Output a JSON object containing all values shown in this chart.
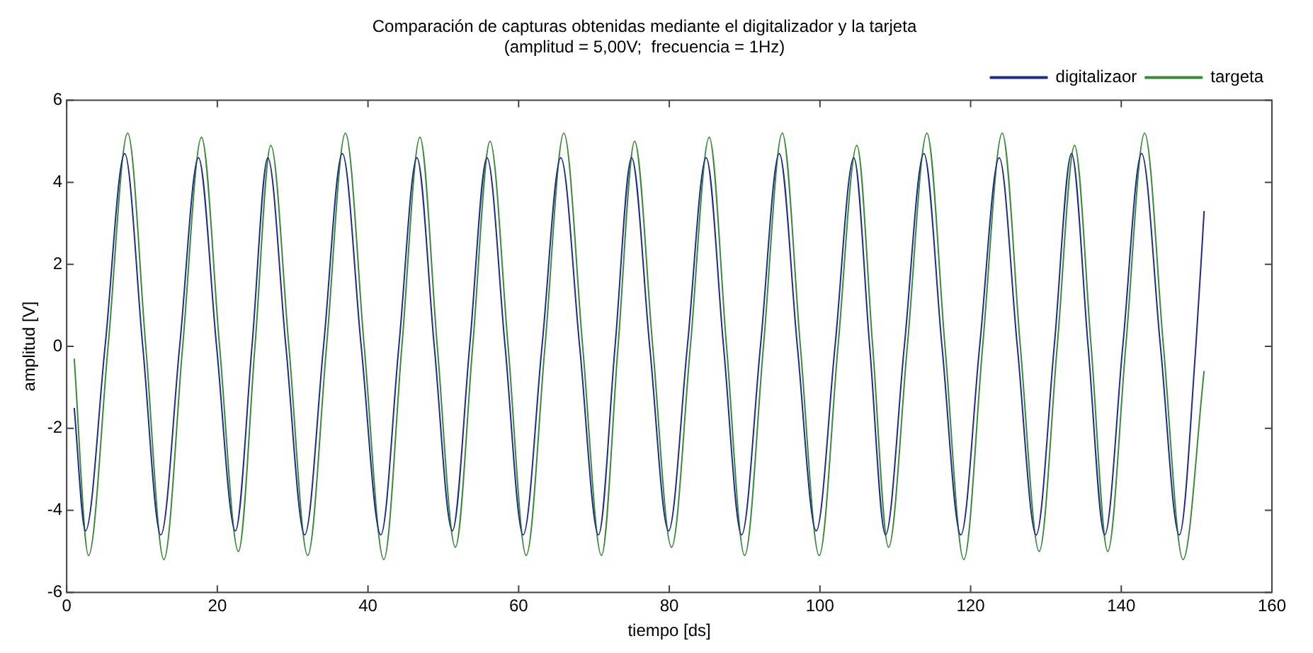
{
  "chart_data": {
    "type": "line",
    "title": "Comparación de capturas obtenidas mediante el digitalizador y la tarjeta",
    "subtitle": "(amplitud = 5,00V;  frecuencia = 1Hz)",
    "xlabel": "tiempo [ds]",
    "ylabel": "amplitud [V]",
    "series": [
      {
        "name": "digitalizaor",
        "color": "#1f2a8c",
        "x": [
          1,
          2.5,
          5.1,
          7.7,
          10.1,
          12.5,
          15,
          17.5,
          19.9,
          22.4,
          24.6,
          26.7,
          29.1,
          31.6,
          34.1,
          36.6,
          39.1,
          41.7,
          44.1,
          46.5,
          48.8,
          51.2,
          53.5,
          55.8,
          58.2,
          60.6,
          63.1,
          65.6,
          68.1,
          70.6,
          72.8,
          75,
          77.4,
          79.9,
          82.4,
          84.9,
          87.2,
          89.6,
          92.1,
          94.6,
          97,
          99.5,
          102,
          104.5,
          106.6,
          108.7,
          111.2,
          113.8,
          116.2,
          118.7,
          121.2,
          123.8,
          126.2,
          128.7,
          131.1,
          133.4,
          135.6,
          137.8,
          140.2,
          142.7,
          145.2,
          147.7,
          149.9,
          151
        ],
        "values": [
          -1.5,
          -4.5,
          0,
          4.7,
          0,
          -4.6,
          0,
          4.6,
          0,
          -4.5,
          0,
          4.6,
          0,
          -4.6,
          0,
          4.7,
          0,
          -4.6,
          0,
          4.6,
          0,
          -4.5,
          0,
          4.6,
          0,
          -4.6,
          0,
          4.6,
          0,
          -4.6,
          0,
          4.6,
          0,
          -4.5,
          0,
          4.6,
          0,
          -4.6,
          0,
          4.7,
          0,
          -4.5,
          0,
          4.6,
          0,
          -4.6,
          0,
          4.7,
          0,
          -4.6,
          0,
          4.6,
          0,
          -4.6,
          0,
          4.7,
          0,
          -4.6,
          0,
          4.7,
          0,
          -4.6,
          0,
          3.3
        ]
      },
      {
        "name": "targeta",
        "color": "#3a8a3a",
        "x": [
          1,
          2.9,
          5.5,
          8.1,
          10.5,
          12.9,
          15.4,
          17.9,
          20.3,
          22.8,
          25,
          27.1,
          29.5,
          32,
          34.5,
          37,
          39.5,
          42.1,
          44.5,
          46.9,
          49.2,
          51.6,
          53.9,
          56.2,
          58.6,
          61,
          63.5,
          66,
          68.5,
          71,
          73.2,
          75.4,
          77.8,
          80.3,
          82.8,
          85.3,
          87.6,
          90,
          92.5,
          95,
          97.4,
          99.9,
          102.4,
          104.9,
          107,
          109.1,
          111.6,
          114.2,
          116.6,
          119.1,
          121.6,
          124.2,
          126.6,
          129.1,
          131.5,
          133.8,
          136,
          138.2,
          140.6,
          143.1,
          145.6,
          148.2,
          151
        ],
        "values": [
          -0.3,
          -5.1,
          0,
          5.2,
          0,
          -5.2,
          0,
          5.1,
          0,
          -5,
          0,
          4.9,
          0,
          -5.1,
          0,
          5.2,
          0,
          -5.2,
          0,
          5.1,
          0,
          -4.9,
          0,
          5,
          0,
          -5.1,
          0,
          5.2,
          0,
          -5.1,
          0,
          5,
          0,
          -4.9,
          0,
          5.1,
          0,
          -5.1,
          0,
          5.2,
          0,
          -5.1,
          0,
          4.9,
          0,
          -4.9,
          0,
          5.2,
          0,
          -5.2,
          0,
          5.2,
          0,
          -5,
          0,
          4.9,
          0,
          -5,
          0,
          5.2,
          0,
          -5.2,
          -0.6
        ]
      }
    ],
    "xlim": [
      0,
      160
    ],
    "xticks": [
      0,
      20,
      40,
      60,
      80,
      100,
      120,
      140,
      160
    ],
    "ylim": [
      -6,
      6
    ],
    "yticks": [
      -6,
      -4,
      -2,
      0,
      2,
      4,
      6
    ],
    "grid": false,
    "legend": "top right",
    "marker": "none",
    "line_style": "solid"
  }
}
